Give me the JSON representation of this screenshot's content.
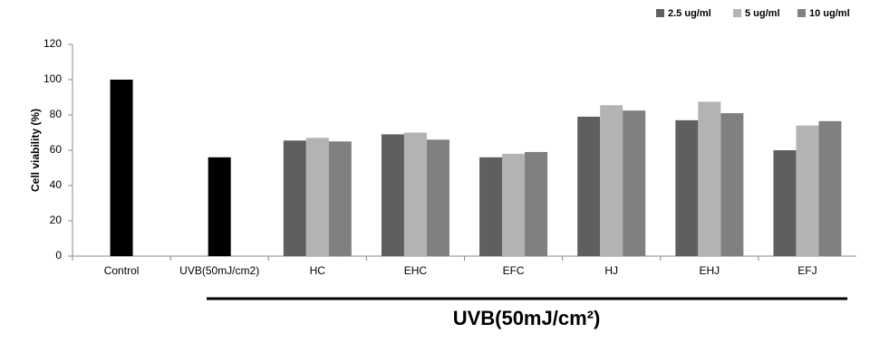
{
  "chart_data": {
    "type": "bar",
    "y_label": "Cell viability (%)",
    "annotation": "UVB(50mJ/cm²)",
    "categories": [
      "Control",
      "UVB(50mJ/cm2)",
      "HC",
      "EHC",
      "EFC",
      "HJ",
      "EHJ",
      "EFJ"
    ],
    "series": [
      {
        "color": "#000000",
        "values": [
          100,
          56,
          null,
          null,
          null,
          null,
          null,
          null
        ]
      },
      {
        "name": "2.5 ug/ml",
        "color": "#5f5f5f",
        "values": [
          null,
          null,
          65.5,
          69,
          56,
          79,
          77,
          60
        ]
      },
      {
        "name": "5 ug/ml",
        "color": "#b3b3b3",
        "values": [
          null,
          null,
          67,
          70,
          58,
          85.5,
          87.5,
          74
        ]
      },
      {
        "name": "10 ug/ml",
        "color": "#808080",
        "values": [
          null,
          null,
          65,
          66,
          59,
          82.5,
          81,
          76.5
        ]
      }
    ],
    "ylim": [
      0,
      120
    ],
    "yticks": [
      0,
      20,
      40,
      60,
      80,
      100,
      120
    ],
    "grid": false,
    "legend": "top-right"
  }
}
